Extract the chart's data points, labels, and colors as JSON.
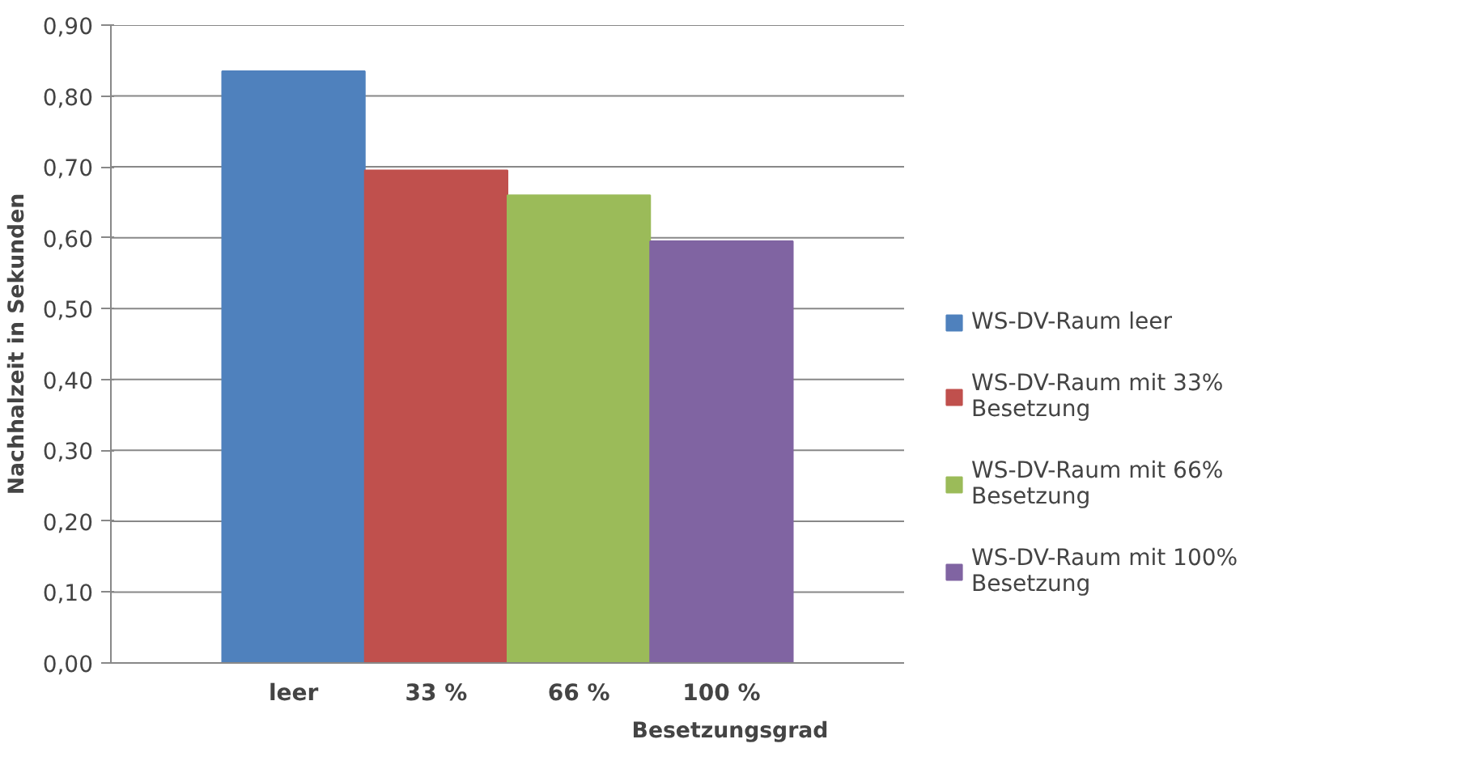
{
  "chart_data": {
    "type": "bar",
    "xlabel": "Besetzungsgrad",
    "ylabel": "Nachhalzeit in Sekunden",
    "categories": [
      "leer",
      "33 %",
      "66 %",
      "100 %"
    ],
    "series": [
      {
        "name": "WS-DV-Raum leer",
        "color": "#4f81bd",
        "values": [
          0.835,
          null,
          null,
          null
        ]
      },
      {
        "name": "WS-DV-Raum mit 33% Besetzung",
        "color": "#c0504d",
        "values": [
          null,
          0.695,
          null,
          null
        ]
      },
      {
        "name": "WS-DV-Raum mit 66% Besetzung",
        "color": "#9bbb59",
        "values": [
          null,
          null,
          0.66,
          null
        ]
      },
      {
        "name": "WS-DV-Raum mit 100% Besetzung",
        "color": "#8064a2",
        "values": [
          null,
          null,
          null,
          0.595
        ]
      }
    ],
    "ylim": [
      0,
      0.9
    ],
    "yticks": [
      {
        "value": 0,
        "label": "0,00"
      },
      {
        "value": 0.1,
        "label": "0,10"
      },
      {
        "value": 0.2,
        "label": "0,20"
      },
      {
        "value": 0.3,
        "label": "0,30"
      },
      {
        "value": 0.4,
        "label": "0,40"
      },
      {
        "value": 0.5,
        "label": "0,50"
      },
      {
        "value": 0.6,
        "label": "0,60"
      },
      {
        "value": 0.7,
        "label": "0,70"
      },
      {
        "value": 0.8,
        "label": "0,80"
      },
      {
        "value": 0.9,
        "label": "0,90"
      }
    ],
    "grid": "y",
    "legend": "right"
  }
}
